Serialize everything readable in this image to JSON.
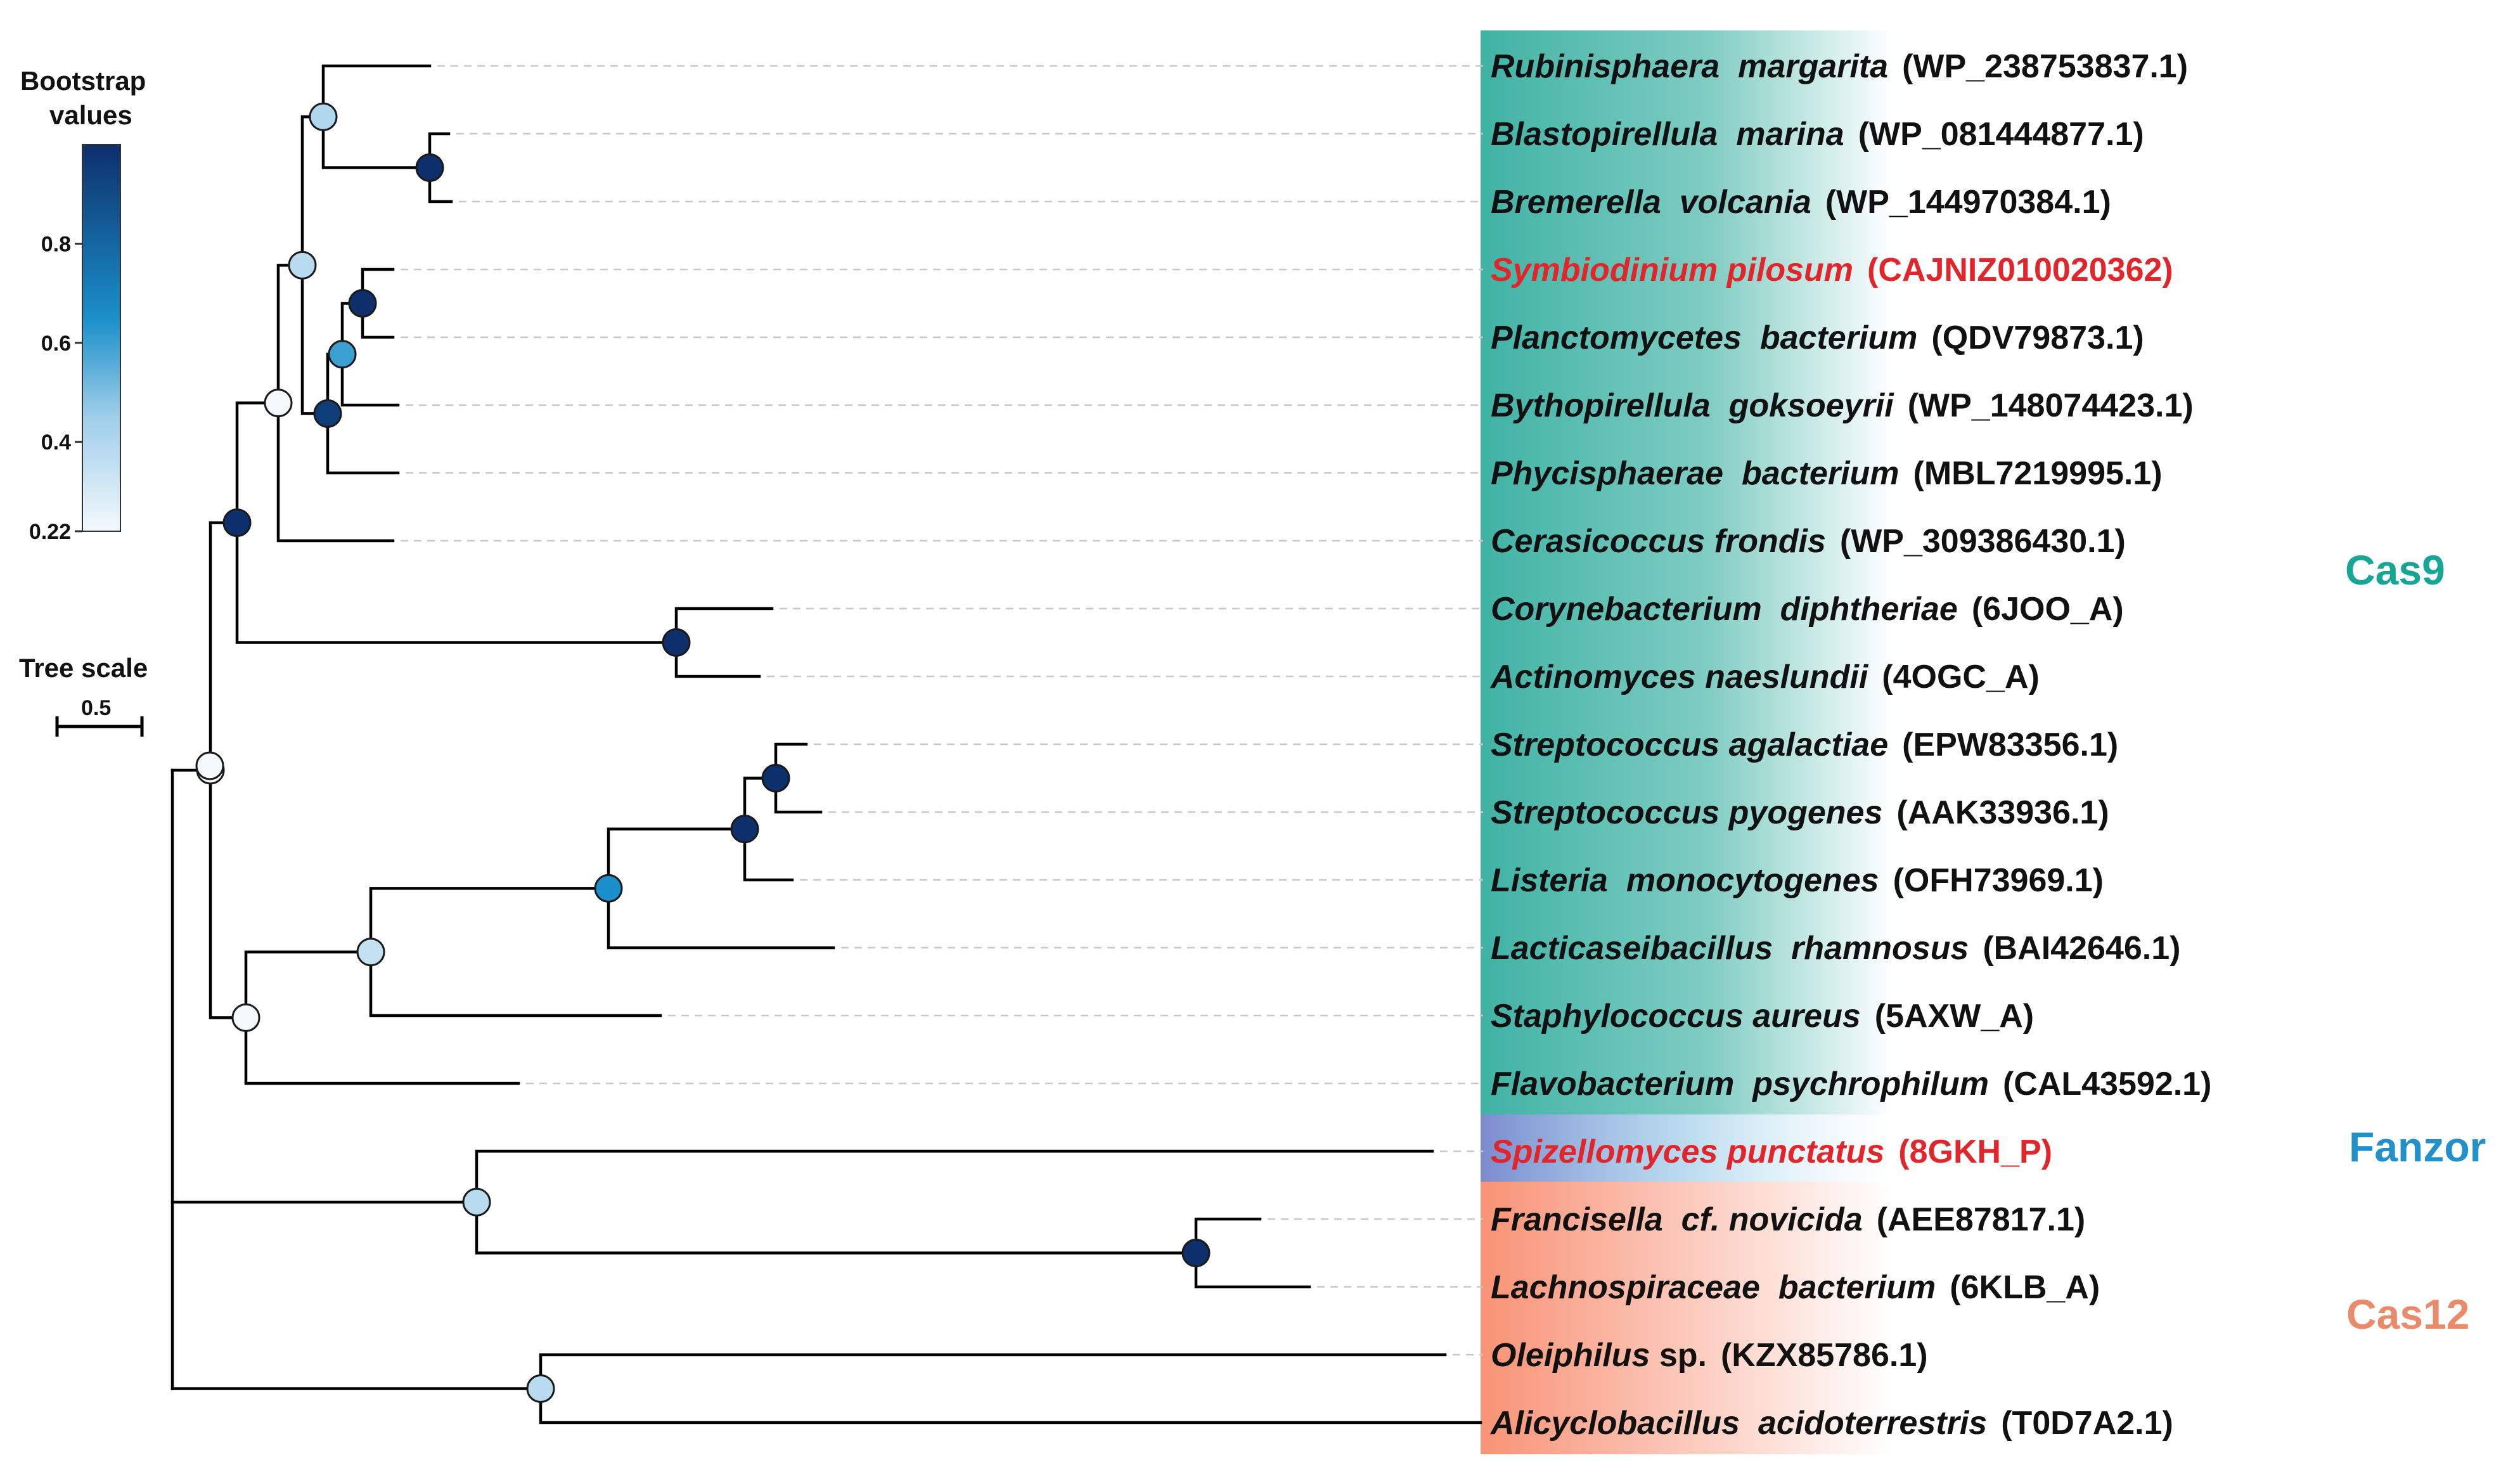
{
  "legend": {
    "title_line1": "Bootstrap",
    "title_line2": "values",
    "ticks": [
      "0.8",
      "0.6",
      "0.4",
      "0.22"
    ],
    "tick_values": [
      0.8,
      0.6,
      0.4,
      0.22
    ],
    "min": 0.22,
    "max": 1.0,
    "color_low": "#f4f9fd",
    "color_mid": "#1a8fc9",
    "color_high": "#0d2f6b"
  },
  "tree_scale": {
    "label": "Tree scale",
    "value": "0.5"
  },
  "groups": [
    {
      "name": "Cas9",
      "color": "#17a595",
      "band_color": "#17a595"
    },
    {
      "name": "Fanzor",
      "color": "#2291c9",
      "band_color": "#7a8ccc"
    },
    {
      "name": "Cas12",
      "color": "#e98b6a",
      "band_color": "#f7987a"
    }
  ],
  "leaves": [
    {
      "species": "Rubinisphaera  margarita",
      "accession": "(WP_238753837.1)",
      "highlight": false,
      "group": "Cas9"
    },
    {
      "species": "Blastopirellula  marina",
      "accession": "(WP_081444877.1)",
      "highlight": false,
      "group": "Cas9"
    },
    {
      "species": "Bremerella  volcania",
      "accession": "(WP_144970384.1)",
      "highlight": false,
      "group": "Cas9"
    },
    {
      "species": "Symbiodinium pilosum",
      "accession": "(CAJNIZ010020362)",
      "highlight": true,
      "group": "Cas9"
    },
    {
      "species": "Planctomycetes  bacterium",
      "accession": "(QDV79873.1)",
      "highlight": false,
      "group": "Cas9"
    },
    {
      "species": "Bythopirellula  goksoeyrii",
      "accession": "(WP_148074423.1)",
      "highlight": false,
      "group": "Cas9"
    },
    {
      "species": "Phycisphaerae  bacterium",
      "accession": "(MBL7219995.1)",
      "highlight": false,
      "group": "Cas9"
    },
    {
      "species": "Cerasicoccus frondis",
      "accession": "(WP_309386430.1)",
      "highlight": false,
      "group": "Cas9"
    },
    {
      "species": "Corynebacterium  diphtheriae",
      "accession": "(6JOO_A)",
      "highlight": false,
      "group": "Cas9"
    },
    {
      "species": "Actinomyces naeslundii",
      "accession": "(4OGC_A)",
      "highlight": false,
      "group": "Cas9"
    },
    {
      "species": "Streptococcus agalactiae",
      "accession": "(EPW83356.1)",
      "highlight": false,
      "group": "Cas9"
    },
    {
      "species": "Streptococcus pyogenes",
      "accession": "(AAK33936.1)",
      "highlight": false,
      "group": "Cas9"
    },
    {
      "species": "Listeria  monocytogenes",
      "accession": "(OFH73969.1)",
      "highlight": false,
      "group": "Cas9"
    },
    {
      "species": "Lacticaseibacillus  rhamnosus",
      "accession": "(BAI42646.1)",
      "highlight": false,
      "group": "Cas9"
    },
    {
      "species": "Staphylococcus aureus",
      "accession": "(5AXW_A)",
      "highlight": false,
      "group": "Cas9"
    },
    {
      "species": "Flavobacterium  psychrophilum",
      "accession": "(CAL43592.1)",
      "highlight": false,
      "group": "Cas9"
    },
    {
      "species": "Spizellomyces punctatus",
      "accession": "(8GKH_P)",
      "highlight": true,
      "group": "Fanzor"
    },
    {
      "species": "Francisella  cf. novicida",
      "accession": "(AEE87817.1)",
      "highlight": false,
      "group": "Cas12"
    },
    {
      "species": "Lachnospiraceae  bacterium",
      "accession": "(6KLB_A)",
      "highlight": false,
      "group": "Cas12"
    },
    {
      "species": "Oleiphilus",
      "species_suffix": " sp.",
      "accession": "(KZX85786.1)",
      "highlight": false,
      "group": "Cas12"
    },
    {
      "species": "Alicyclobacillus  acidoterrestris",
      "accession": "(T0D7A2.1)",
      "highlight": false,
      "group": "Cas12"
    }
  ],
  "internal_nodes": [
    {
      "id": "n1",
      "bootstrap": 0.5
    },
    {
      "id": "n2",
      "bootstrap": 1.0
    },
    {
      "id": "n3",
      "bootstrap": 0.4
    },
    {
      "id": "n4",
      "bootstrap": 1.0
    },
    {
      "id": "n5",
      "bootstrap": 0.6
    },
    {
      "id": "n6",
      "bootstrap": 0.95
    },
    {
      "id": "n7",
      "bootstrap": 0.38
    },
    {
      "id": "n8",
      "bootstrap": 0.22
    },
    {
      "id": "n9",
      "bootstrap": 1.0
    },
    {
      "id": "n10",
      "bootstrap": 1.0
    },
    {
      "id": "n11",
      "bootstrap": 1.0
    },
    {
      "id": "n12",
      "bootstrap": 1.0
    },
    {
      "id": "n13",
      "bootstrap": 0.65
    },
    {
      "id": "n14",
      "bootstrap": 0.35
    },
    {
      "id": "n15",
      "bootstrap": 0.22
    },
    {
      "id": "n16",
      "bootstrap": 1.0
    },
    {
      "id": "n17",
      "bootstrap": 0.38
    },
    {
      "id": "n18",
      "bootstrap": 0.38
    }
  ]
}
